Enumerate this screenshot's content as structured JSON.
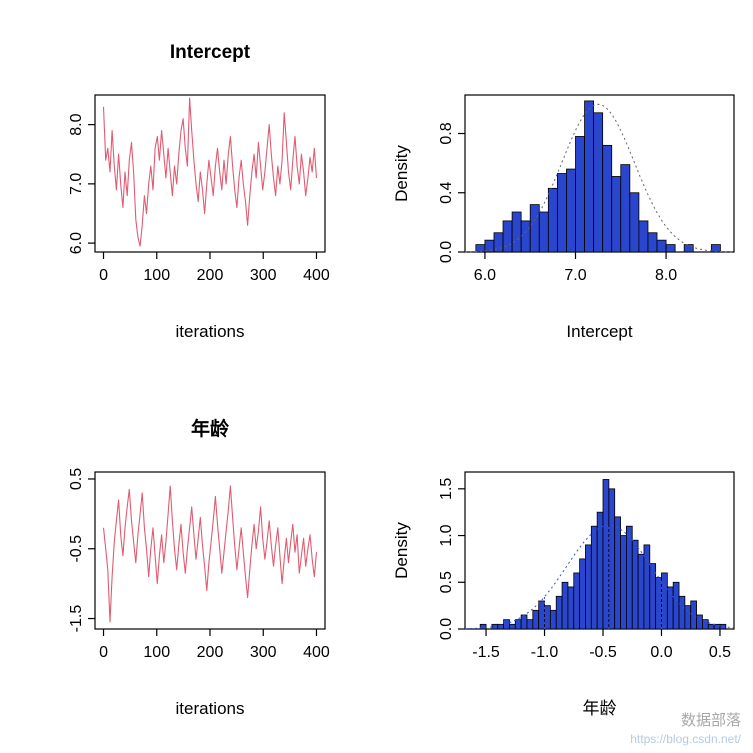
{
  "page": {
    "background": "#ffffff"
  },
  "watermark": {
    "line1": "数据部落",
    "line2": "https://blog.csdn.net/",
    "color1": "#8a8a8a",
    "color2": "#a3bddd"
  },
  "chart_data": [
    {
      "id": "trace-intercept",
      "type": "line",
      "title": "Intercept",
      "xlabel": "iterations",
      "ylabel": "",
      "xlim": [
        -16,
        416
      ],
      "ylim": [
        5.85,
        8.5
      ],
      "xticks": [
        0,
        100,
        200,
        300,
        400
      ],
      "xtick_labels": [
        "0",
        "100",
        "200",
        "300",
        "400"
      ],
      "yticks": [
        6.0,
        7.0,
        8.0
      ],
      "ytick_labels": [
        "6.0",
        "7.0",
        "8.0"
      ],
      "x_max_iter": 400,
      "line_color": "#e05c72",
      "values": [
        8.3,
        7.4,
        7.6,
        7.2,
        7.9,
        7.3,
        6.9,
        7.5,
        7.0,
        6.6,
        7.2,
        6.8,
        7.4,
        7.7,
        7.2,
        6.4,
        6.1,
        5.95,
        6.3,
        6.8,
        6.5,
        7.0,
        7.3,
        6.9,
        7.6,
        7.8,
        7.4,
        7.9,
        7.5,
        7.1,
        7.6,
        7.2,
        6.8,
        7.3,
        7.0,
        7.5,
        7.9,
        8.1,
        7.6,
        7.3,
        8.45,
        7.9,
        7.4,
        7.0,
        6.7,
        7.2,
        6.9,
        6.5,
        7.0,
        7.4,
        7.1,
        6.8,
        7.3,
        7.6,
        7.2,
        6.9,
        7.4,
        7.0,
        7.5,
        7.8,
        7.3,
        6.9,
        6.6,
        7.1,
        7.4,
        7.0,
        6.7,
        6.3,
        6.8,
        7.2,
        7.5,
        7.1,
        7.7,
        7.3,
        6.9,
        7.2,
        7.6,
        8.0,
        7.5,
        7.1,
        6.8,
        7.3,
        7.0,
        7.4,
        8.2,
        7.7,
        7.2,
        6.9,
        7.4,
        7.8,
        7.3,
        7.0,
        7.5,
        7.2,
        6.8,
        7.1,
        7.45,
        7.2,
        7.6,
        7.1
      ]
    },
    {
      "id": "hist-intercept",
      "type": "histogram",
      "title": "",
      "xlabel": "Intercept",
      "ylabel": "Density",
      "xlim": [
        5.78,
        8.75
      ],
      "ylim": [
        0,
        1.06
      ],
      "xticks": [
        6.0,
        7.0,
        8.0
      ],
      "xtick_labels": [
        "6.0",
        "7.0",
        "8.0"
      ],
      "yticks": [
        0.0,
        0.4,
        0.8
      ],
      "ytick_labels": [
        "0.0",
        "0.4",
        "0.8"
      ],
      "bin_start": 5.9,
      "bin_width": 0.1,
      "heights": [
        0.05,
        0.08,
        0.13,
        0.21,
        0.27,
        0.21,
        0.32,
        0.27,
        0.43,
        0.53,
        0.56,
        0.78,
        1.02,
        0.94,
        0.72,
        0.51,
        0.59,
        0.4,
        0.21,
        0.13,
        0.08,
        0.05,
        0.0,
        0.05,
        0.0,
        0.0,
        0.05
      ],
      "bar_fill": "#2a46cc",
      "bar_stroke": "#000000",
      "curve": {
        "mean": 7.25,
        "sd": 0.4,
        "color": "#666666"
      },
      "vlines": []
    },
    {
      "id": "trace-age",
      "type": "line",
      "title": "年龄",
      "xlabel": "iterations",
      "ylabel": "",
      "xlim": [
        -16,
        416
      ],
      "ylim": [
        -1.65,
        0.6
      ],
      "xticks": [
        0,
        100,
        200,
        300,
        400
      ],
      "xtick_labels": [
        "0",
        "100",
        "200",
        "300",
        "400"
      ],
      "yticks": [
        0.5,
        -0.5,
        -1.5
      ],
      "ytick_labels": [
        "0.5",
        "-0.5",
        "-1.5"
      ],
      "x_max_iter": 400,
      "line_color": "#e05c72",
      "values": [
        -0.2,
        -0.5,
        -0.8,
        -1.55,
        -0.9,
        -0.4,
        -0.1,
        0.2,
        -0.3,
        -0.6,
        -0.2,
        0.1,
        0.35,
        -0.1,
        -0.4,
        -0.7,
        -0.3,
        0.0,
        0.3,
        -0.2,
        -0.5,
        -0.9,
        -0.5,
        -0.2,
        -0.6,
        -1.0,
        -0.6,
        -0.3,
        -0.7,
        -0.4,
        0.0,
        0.4,
        -0.1,
        -0.5,
        -0.8,
        -0.45,
        -0.15,
        -0.55,
        -0.85,
        -0.5,
        -0.2,
        0.1,
        -0.3,
        -0.65,
        -0.35,
        -0.05,
        -0.45,
        -0.75,
        -1.1,
        -0.7,
        -0.4,
        -0.1,
        0.25,
        -0.15,
        -0.5,
        -0.85,
        -0.55,
        -0.25,
        0.05,
        0.4,
        -0.05,
        -0.45,
        -0.8,
        -0.5,
        -0.2,
        -0.55,
        -0.9,
        -1.2,
        -0.8,
        -0.45,
        -0.15,
        -0.5,
        -0.25,
        0.1,
        -0.35,
        -0.65,
        -0.4,
        -0.1,
        -0.45,
        -0.75,
        -0.45,
        -0.2,
        -0.6,
        -1.0,
        -0.65,
        -0.35,
        -0.7,
        -0.4,
        -0.15,
        -0.55,
        -0.3,
        -0.85,
        -0.6,
        -0.35,
        -0.75,
        -0.5,
        -0.3,
        -0.65,
        -0.9,
        -0.55
      ]
    },
    {
      "id": "hist-age",
      "type": "histogram",
      "title": "",
      "xlabel": "年龄",
      "ylabel": "Density",
      "xlim": [
        -1.68,
        0.62
      ],
      "ylim": [
        0,
        1.68
      ],
      "xticks": [
        -1.5,
        -1.0,
        -0.5,
        0.0,
        0.5
      ],
      "xtick_labels": [
        "-1.5",
        "-1.0",
        "-0.5",
        "0.0",
        "0.5"
      ],
      "yticks": [
        0.0,
        0.5,
        1.0,
        1.5
      ],
      "ytick_labels": [
        "0.0",
        "0.5",
        "1.0",
        "1.5"
      ],
      "bin_start": -1.55,
      "bin_width": 0.05,
      "heights": [
        0.05,
        0.0,
        0.05,
        0.05,
        0.1,
        0.05,
        0.1,
        0.15,
        0.1,
        0.2,
        0.3,
        0.25,
        0.2,
        0.35,
        0.5,
        0.45,
        0.6,
        0.75,
        0.9,
        1.1,
        1.25,
        1.6,
        1.5,
        1.2,
        1.0,
        1.1,
        0.95,
        0.8,
        0.9,
        0.7,
        0.55,
        0.6,
        0.45,
        0.5,
        0.35,
        0.25,
        0.3,
        0.15,
        0.1,
        0.05,
        0.05,
        0.05
      ],
      "bar_fill": "#2a46cc",
      "bar_stroke": "#000000",
      "curve": {
        "mean": -0.45,
        "sd": 0.36,
        "color": "#3a50d9"
      },
      "vlines": [
        -1.0,
        -0.45,
        0.0
      ]
    }
  ]
}
